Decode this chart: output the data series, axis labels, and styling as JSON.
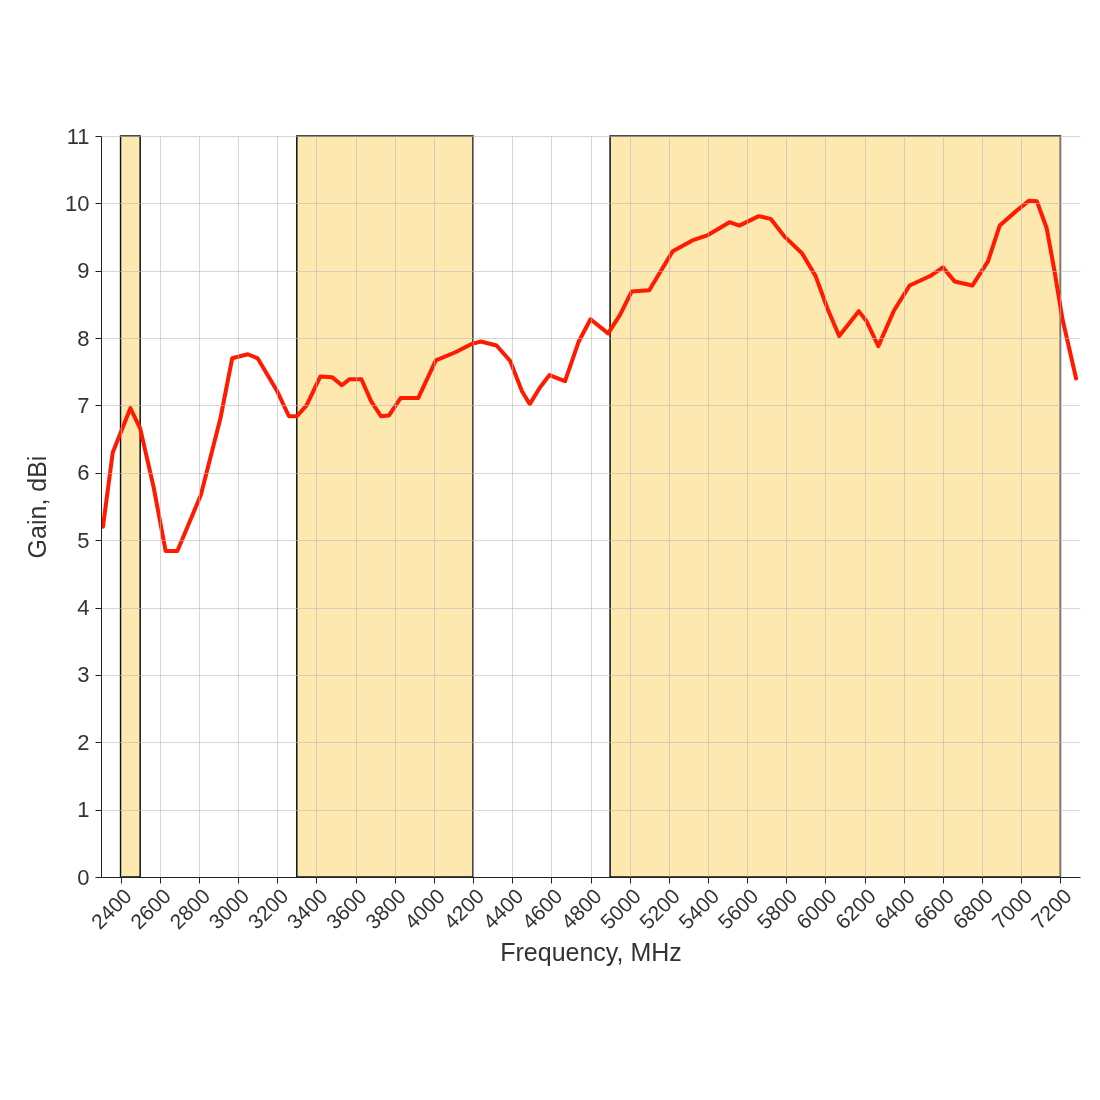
{
  "chart_data": {
    "type": "line",
    "xlabel": "Frequency, MHz",
    "ylabel": "Gain, dBi",
    "xlim": [
      2300,
      7300
    ],
    "ylim": [
      0,
      11
    ],
    "xticks": [
      2400,
      2600,
      2800,
      3000,
      3200,
      3400,
      3600,
      3800,
      4000,
      4200,
      4400,
      4600,
      4800,
      5000,
      5200,
      5400,
      5600,
      5800,
      6000,
      6200,
      6400,
      6600,
      6800,
      7000,
      7200
    ],
    "yticks": [
      0,
      1,
      2,
      3,
      4,
      5,
      6,
      7,
      8,
      9,
      10,
      11
    ],
    "grid": true,
    "bands": [
      {
        "axis": "x",
        "from": 2400,
        "to": 2500,
        "color": "#fde9b0"
      },
      {
        "axis": "x",
        "from": 3300,
        "to": 4200,
        "color": "#fde9b0"
      },
      {
        "axis": "x",
        "from": 4900,
        "to": 7200,
        "color": "#fde9b0"
      }
    ],
    "series": [
      {
        "color": "#ff1a00",
        "x": [
          2310,
          2360,
          2450,
          2500,
          2570,
          2630,
          2690,
          2810,
          2910,
          2970,
          3050,
          3100,
          3200,
          3260,
          3300,
          3350,
          3420,
          3480,
          3530,
          3570,
          3630,
          3680,
          3730,
          3770,
          3830,
          3920,
          4010,
          4110,
          4190,
          4240,
          4320,
          4390,
          4450,
          4490,
          4540,
          4590,
          4670,
          4740,
          4800,
          4890,
          4950,
          5010,
          5100,
          5220,
          5320,
          5400,
          5510,
          5560,
          5660,
          5720,
          5790,
          5880,
          5950,
          6010,
          6070,
          6170,
          6210,
          6270,
          6350,
          6430,
          6540,
          6600,
          6660,
          6750,
          6830,
          6890,
          6980,
          7040,
          7080,
          7130,
          7170,
          7210,
          7280
        ],
        "values": [
          5.2,
          6.3,
          6.96,
          6.66,
          5.77,
          4.84,
          4.84,
          5.67,
          6.81,
          7.7,
          7.76,
          7.7,
          7.21,
          6.84,
          6.84,
          7.0,
          7.43,
          7.42,
          7.3,
          7.39,
          7.39,
          7.06,
          6.84,
          6.85,
          7.11,
          7.11,
          7.67,
          7.79,
          7.91,
          7.95,
          7.89,
          7.66,
          7.21,
          7.02,
          7.26,
          7.45,
          7.36,
          7.95,
          8.28,
          8.07,
          8.34,
          8.69,
          8.71,
          9.29,
          9.45,
          9.53,
          9.72,
          9.67,
          9.81,
          9.77,
          9.51,
          9.26,
          8.92,
          8.44,
          8.03,
          8.4,
          8.25,
          7.88,
          8.41,
          8.78,
          8.93,
          9.05,
          8.84,
          8.78,
          9.14,
          9.67,
          9.9,
          10.04,
          10.03,
          9.63,
          8.99,
          8.29,
          7.4
        ]
      }
    ]
  }
}
